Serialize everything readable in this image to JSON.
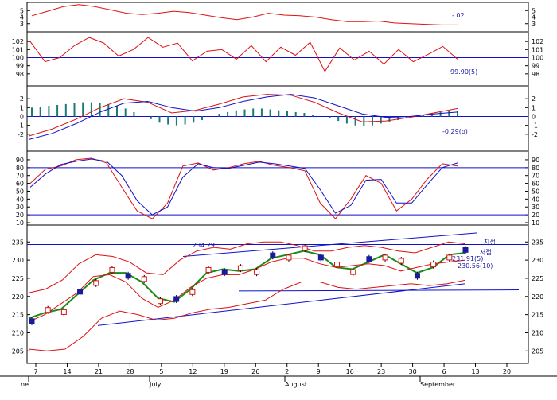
{
  "chart_data": [
    {
      "type": "line",
      "panel": "oscillator-1",
      "ylim": [
        2,
        6
      ],
      "y_ticks": [
        "5",
        "4",
        "3"
      ],
      "series": [
        {
          "color": "#d11",
          "values": [
            4.2,
            4.9,
            5.6,
            5.9,
            5.6,
            5.1,
            4.6,
            4.4,
            4.6,
            4.9,
            4.7,
            4.3,
            3.9,
            3.6,
            4.0,
            4.6,
            4.3,
            4.2,
            4.0,
            3.6,
            3.3,
            3.3,
            3.4,
            3.1,
            3.0,
            2.9,
            2.8,
            2.8
          ]
        }
      ],
      "value_label": "-.02"
    },
    {
      "type": "line",
      "panel": "oscillator-2",
      "ylim": [
        97,
        103
      ],
      "y_ticks": [
        "102",
        "101",
        "100",
        "99",
        "98"
      ],
      "hline": 100,
      "series": [
        {
          "color": "#d11",
          "values": [
            102,
            99.5,
            100,
            101.5,
            102.5,
            101.8,
            100.2,
            101,
            102.5,
            101.3,
            101.8,
            99.6,
            100.8,
            101,
            99.8,
            101.5,
            99.5,
            101.3,
            100.3,
            101.9,
            98.3,
            101.2,
            99.7,
            100.8,
            99.2,
            101,
            99.5,
            100.4,
            101.4,
            99.8
          ]
        }
      ],
      "value_label": "99.90(5)"
    },
    {
      "type": "line",
      "panel": "macd",
      "ylim": [
        -3,
        3
      ],
      "y_ticks": [
        "2",
        "1",
        "0",
        "-1",
        "-2"
      ],
      "hline": 0,
      "series": [
        {
          "color": "#d11",
          "values": [
            -2.2,
            -1.4,
            -0.3,
            1.0,
            2.0,
            1.6,
            0.4,
            0.7,
            1.4,
            2.2,
            2.5,
            2.4,
            1.6,
            0.4,
            -0.6,
            -0.5,
            -0.1,
            0.4,
            0.9
          ]
        },
        {
          "color": "#11c",
          "values": [
            -2.6,
            -1.9,
            -0.8,
            0.5,
            1.5,
            1.7,
            1.0,
            0.6,
            1.0,
            1.7,
            2.2,
            2.5,
            2.1,
            1.2,
            0.3,
            -0.1,
            0.0,
            0.3,
            0.5
          ]
        }
      ],
      "histogram": [
        1.0,
        1.1,
        1.2,
        1.3,
        1.4,
        1.5,
        1.6,
        1.6,
        1.5,
        1.4,
        1.2,
        0.9,
        0.5,
        0.0,
        -0.3,
        -0.7,
        -0.9,
        -1.0,
        -0.9,
        -0.7,
        -0.4,
        0.0,
        0.3,
        0.5,
        0.7,
        0.8,
        0.9,
        0.9,
        0.8,
        0.7,
        0.6,
        0.5,
        0.4,
        0.2,
        0.0,
        -0.2,
        -0.5,
        -0.8,
        -1.0,
        -1.1,
        -1.0,
        -0.8,
        -0.6,
        -0.4,
        -0.2,
        0.0,
        0.2,
        0.4,
        0.5,
        0.6,
        0.6
      ],
      "value_label": "-0.29(o)"
    },
    {
      "type": "line",
      "panel": "stochastic",
      "ylim": [
        10,
        95
      ],
      "y_ticks": [
        "90",
        "80",
        "70",
        "60",
        "50",
        "40",
        "30",
        "20",
        "10"
      ],
      "hlines": [
        80,
        20
      ],
      "series": [
        {
          "color": "#d11",
          "values": [
            60,
            78,
            82,
            90,
            92,
            86,
            55,
            25,
            15,
            35,
            82,
            86,
            77,
            80,
            85,
            88,
            83,
            80,
            76,
            35,
            15,
            40,
            70,
            60,
            25,
            40,
            65,
            85,
            82
          ]
        },
        {
          "color": "#11c",
          "values": [
            55,
            72,
            84,
            88,
            91,
            88,
            70,
            38,
            20,
            30,
            68,
            85,
            80,
            79,
            83,
            87,
            85,
            82,
            79,
            52,
            22,
            32,
            64,
            65,
            35,
            35,
            58,
            80,
            86
          ]
        }
      ]
    },
    {
      "type": "line",
      "panel": "price",
      "ylim": [
        202,
        239
      ],
      "y_ticks": [
        "235",
        "230",
        "225",
        "220",
        "215",
        "210",
        "205"
      ],
      "x_ticks": [
        "7",
        "14",
        "21",
        "28",
        "5",
        "12",
        "19",
        "26",
        "2",
        "9",
        "16",
        "23",
        "30",
        "6",
        "13",
        "20"
      ],
      "months": [
        "ne",
        "July",
        "August",
        "September"
      ],
      "series": [
        {
          "color": "#1a8a1a",
          "values": [
            214,
            215.5,
            216.5,
            220.5,
            224.5,
            226.5,
            226.5,
            224,
            219.5,
            218.5,
            222,
            226.5,
            227.5,
            227,
            227.5,
            230.5,
            231.5,
            232.5,
            231.5,
            228,
            227.5,
            229.5,
            231.5,
            229,
            226.5,
            228,
            231.5,
            232
          ]
        },
        {
          "color": "#d11",
          "values": [
            221,
            222,
            224.5,
            229,
            231.5,
            231,
            229.5,
            226.5,
            226,
            230,
            232.5,
            233.5,
            233,
            234.5,
            235,
            235,
            234,
            232.5,
            232.5,
            233.5,
            234,
            233.5,
            232.5,
            232,
            233.5,
            235,
            234.5
          ]
        },
        {
          "color": "#d11",
          "values": [
            213,
            215,
            218,
            221,
            225.5,
            226,
            224,
            219.5,
            217,
            219,
            222.5,
            225,
            226,
            226,
            227.5,
            229.5,
            230.5,
            230.5,
            229,
            228,
            228.5,
            229,
            228.5,
            227,
            228,
            229,
            229.5,
            230
          ]
        },
        {
          "color": "#d11",
          "values": [
            205.5,
            205,
            205.5,
            209,
            214,
            216,
            215,
            213.5,
            214,
            215.5,
            216.5,
            217,
            218,
            219,
            222,
            224,
            224,
            222.5,
            222,
            222.5,
            223,
            223.5,
            223,
            223.5,
            224.5
          ]
        }
      ],
      "value_labels": [
        "231.91(5)",
        "230.56(10)"
      ],
      "annotations": [
        "234.29",
        "지점",
        "저점"
      ]
    }
  ]
}
